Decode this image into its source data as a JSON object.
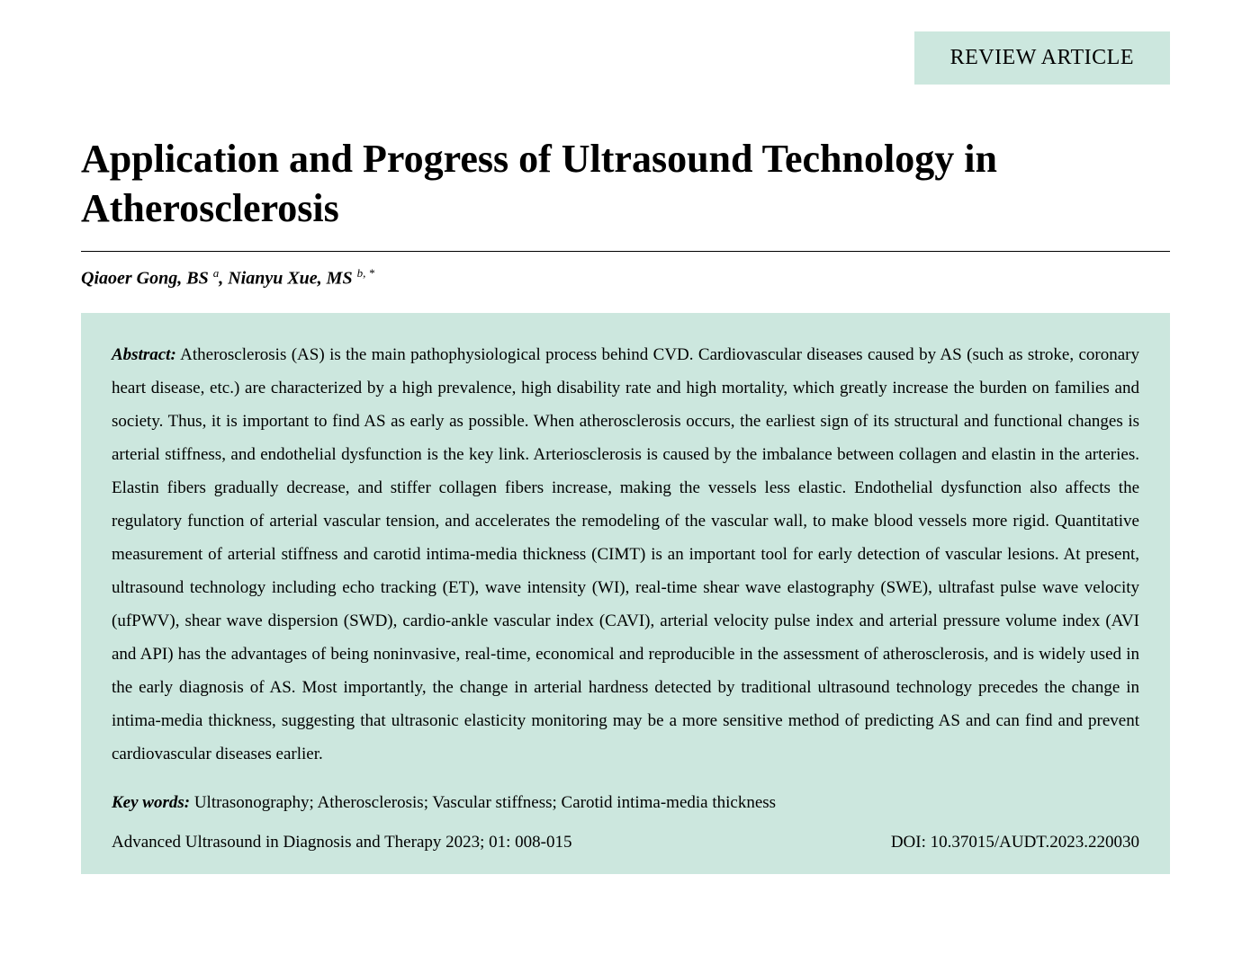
{
  "article_type": "REVIEW ARTICLE",
  "title": "Application and Progress of Ultrasound Technology in Atherosclerosis",
  "authors_html": "Qiaoer Gong, BS <sup>a</sup>, Nianyu Xue, MS <sup>b, *</sup>",
  "abstract": {
    "label": "Abstract:",
    "body": "Atherosclerosis (AS) is the main pathophysiological process behind CVD. Cardiovascular diseases caused by AS (such as stroke, coronary heart disease, etc.) are characterized by a high prevalence, high disability rate and high mortality, which greatly increase the burden on families and society. Thus, it is important to find AS as early as possible. When atherosclerosis occurs, the earliest sign of its structural and functional changes is arterial stiffness, and endothelial dysfunction is the key link. Arteriosclerosis is caused by the imbalance between collagen and elastin in the arteries. Elastin fibers gradually decrease, and stiffer collagen fibers increase, making the vessels less elastic. Endothelial dysfunction also affects the regulatory function of arterial vascular tension, and accelerates the remodeling of the vascular wall, to make blood vessels more rigid. Quantitative measurement of arterial stiffness and carotid intima-media thickness (CIMT) is an important tool for early detection of vascular lesions. At present, ultrasound technology including echo tracking (ET), wave intensity (WI), real-time shear wave elastography (SWE), ultrafast pulse wave velocity (ufPWV), shear wave dispersion (SWD), cardio-ankle vascular index (CAVI), arterial velocity pulse index and arterial pressure volume index (AVI and API) has the advantages of being noninvasive, real-time, economical and reproducible in the assessment of atherosclerosis, and is widely used in the early diagnosis of AS. Most importantly, the change in arterial hardness detected by traditional ultrasound technology precedes the change in intima-media thickness, suggesting that ultrasonic elasticity monitoring may be a more sensitive method of predicting AS and can find and prevent cardiovascular diseases earlier."
  },
  "keywords": {
    "label": "Key words:",
    "body": "Ultrasonography; Atherosclerosis; Vascular stiffness; Carotid intima-media thickness"
  },
  "citation": "Advanced Ultrasound in Diagnosis and Therapy 2023; 01: 008-015",
  "doi": "DOI: 10.37015/AUDT.2023.220030",
  "colors": {
    "accent_bg": "#cce7de",
    "text": "#000000",
    "page_bg": "#ffffff"
  }
}
